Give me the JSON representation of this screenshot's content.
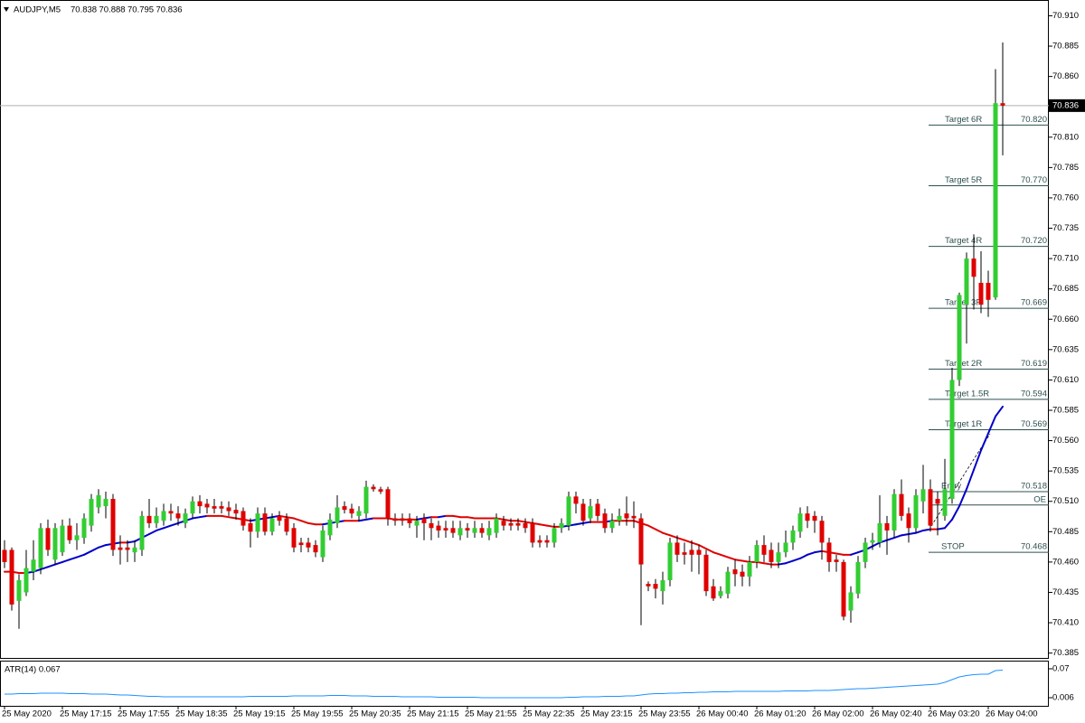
{
  "chart_data": {
    "type": "candlestick",
    "symbol": "AUDJPY,M5",
    "indicator_label": "ATR(14) 0.067",
    "up_color": "#32cd32",
    "down_color": "#e00000",
    "wick_color": "#000000",
    "ma_up_color": "#0000c8",
    "ma_down_color": "#e00000",
    "atr_color": "#1e90ff",
    "current_price_line": true,
    "ylim": [
      70.381,
      70.923
    ],
    "yticks": [
      {
        "value": 70.91,
        "label": "70.910"
      },
      {
        "value": 70.885,
        "label": "70.885"
      },
      {
        "value": 70.86,
        "label": "70.860"
      },
      {
        "value": 70.81,
        "label": "70.810"
      },
      {
        "value": 70.785,
        "label": "70.785"
      },
      {
        "value": 70.76,
        "label": "70.760"
      },
      {
        "value": 70.735,
        "label": "70.735"
      },
      {
        "value": 70.71,
        "label": "70.710"
      },
      {
        "value": 70.685,
        "label": "70.685"
      },
      {
        "value": 70.66,
        "label": "70.660"
      },
      {
        "value": 70.635,
        "label": "70.635"
      },
      {
        "value": 70.61,
        "label": "70.610"
      },
      {
        "value": 70.585,
        "label": "70.585"
      },
      {
        "value": 70.56,
        "label": "70.560"
      },
      {
        "value": 70.535,
        "label": "70.535"
      },
      {
        "value": 70.51,
        "label": "70.510"
      },
      {
        "value": 70.485,
        "label": "70.485"
      },
      {
        "value": 70.46,
        "label": "70.460"
      },
      {
        "value": 70.435,
        "label": "70.435"
      },
      {
        "value": 70.41,
        "label": "70.410"
      },
      {
        "value": 70.385,
        "label": "70.385"
      }
    ],
    "atr_ylim": [
      -0.012,
      0.084
    ],
    "atr_ticks": [
      0.07,
      0.006
    ],
    "levels": [
      {
        "name": "Target 6R",
        "value": 70.82,
        "label": "70.820"
      },
      {
        "name": "Target 5R",
        "value": 70.77,
        "label": "70.770"
      },
      {
        "name": "Target 4R",
        "value": 70.72,
        "label": "70.720"
      },
      {
        "name": "Target 3R",
        "value": 70.669,
        "label": "70.669"
      },
      {
        "name": "Target 2R",
        "value": 70.619,
        "label": "70.619"
      },
      {
        "name": "Target 1.5R",
        "value": 70.594,
        "label": "70.594"
      },
      {
        "name": "Target 1R",
        "value": 70.569,
        "label": "70.569"
      },
      {
        "name": "Entry",
        "value": 70.518,
        "label": "70.518"
      },
      {
        "name": "OE",
        "value": 70.507
      },
      {
        "name": "STOP",
        "value": 70.468,
        "label": "70.468"
      }
    ],
    "categories": [
      "25 May 2020",
      null,
      null,
      null,
      null,
      null,
      null,
      null,
      "25 May 17:15",
      null,
      null,
      null,
      null,
      null,
      null,
      null,
      "25 May 17:55",
      null,
      null,
      null,
      null,
      null,
      null,
      null,
      "25 May 18:35",
      null,
      null,
      null,
      null,
      null,
      null,
      null,
      "25 May 19:15",
      null,
      null,
      null,
      null,
      null,
      null,
      null,
      "25 May 19:55",
      null,
      null,
      null,
      null,
      null,
      null,
      null,
      "25 May 20:35",
      null,
      null,
      null,
      null,
      null,
      null,
      null,
      "25 May 21:15",
      null,
      null,
      null,
      null,
      null,
      null,
      null,
      "25 May 21:55",
      null,
      null,
      null,
      null,
      null,
      null,
      null,
      "25 May 22:35",
      null,
      null,
      null,
      null,
      null,
      null,
      null,
      "25 May 23:15",
      null,
      null,
      null,
      null,
      null,
      null,
      null,
      "25 May 23:55",
      null,
      null,
      null,
      null,
      null,
      null,
      null,
      "26 May 00:40",
      null,
      null,
      null,
      null,
      null,
      null,
      null,
      "26 May 01:20",
      null,
      null,
      null,
      null,
      null,
      null,
      null,
      "26 May 02:00",
      null,
      null,
      null,
      null,
      null,
      null,
      null,
      "26 May 02:40",
      null,
      null,
      null,
      null,
      null,
      null,
      null,
      "26 May 03:20",
      null,
      null,
      null,
      null,
      null,
      null,
      null,
      "26 May 04:00",
      null,
      null
    ],
    "candles": [
      [
        70.47,
        70.478,
        70.455,
        70.46
      ],
      [
        70.47,
        70.472,
        70.42,
        70.425
      ],
      [
        70.428,
        70.45,
        70.405,
        70.445
      ],
      [
        70.435,
        70.47,
        70.432,
        70.455
      ],
      [
        70.452,
        70.478,
        70.445,
        70.462
      ],
      [
        70.455,
        70.492,
        70.45,
        70.488
      ],
      [
        70.488,
        70.495,
        70.465,
        70.47
      ],
      [
        70.462,
        70.492,
        70.458,
        70.488
      ],
      [
        70.468,
        70.495,
        70.465,
        70.49
      ],
      [
        70.49,
        70.496,
        70.475,
        70.478
      ],
      [
        70.478,
        70.492,
        70.47,
        70.482
      ],
      [
        70.48,
        70.5,
        70.475,
        70.496
      ],
      [
        70.49,
        70.516,
        70.485,
        70.512
      ],
      [
        70.505,
        70.52,
        70.5,
        70.515
      ],
      [
        70.506,
        70.518,
        70.496,
        70.512
      ],
      [
        70.512,
        70.516,
        70.465,
        70.47
      ],
      [
        70.472,
        70.482,
        70.458,
        70.47
      ],
      [
        70.472,
        70.478,
        70.46,
        70.47
      ],
      [
        70.468,
        70.478,
        70.46,
        70.472
      ],
      [
        70.47,
        70.502,
        70.465,
        70.498
      ],
      [
        70.498,
        70.512,
        70.488,
        70.492
      ],
      [
        70.492,
        70.505,
        70.488,
        70.498
      ],
      [
        70.494,
        70.508,
        70.49,
        70.502
      ],
      [
        70.502,
        70.508,
        70.494,
        70.5
      ],
      [
        70.5,
        70.506,
        70.49,
        70.496
      ],
      [
        70.492,
        70.504,
        70.488,
        70.5
      ],
      [
        70.5,
        70.514,
        70.496,
        70.51
      ],
      [
        70.51,
        70.515,
        70.5,
        70.506
      ],
      [
        70.508,
        70.512,
        70.5,
        70.505
      ],
      [
        70.506,
        70.512,
        70.5,
        70.504
      ],
      [
        70.506,
        70.51,
        70.5,
        70.504
      ],
      [
        70.505,
        70.51,
        70.498,
        70.502
      ],
      [
        70.503,
        70.508,
        70.495,
        70.5
      ],
      [
        70.502,
        70.505,
        70.486,
        70.49
      ],
      [
        70.492,
        70.496,
        70.472,
        70.485
      ],
      [
        70.485,
        70.505,
        70.48,
        70.5
      ],
      [
        70.5,
        70.505,
        70.482,
        70.485
      ],
      [
        70.485,
        70.5,
        70.482,
        70.496
      ],
      [
        70.498,
        70.502,
        70.49,
        70.494
      ],
      [
        70.496,
        70.5,
        70.482,
        70.485
      ],
      [
        70.488,
        70.492,
        70.468,
        70.472
      ],
      [
        70.476,
        70.48,
        70.468,
        70.474
      ],
      [
        70.476,
        70.48,
        70.468,
        70.472
      ],
      [
        70.474,
        70.478,
        70.464,
        70.468
      ],
      [
        70.464,
        70.49,
        70.46,
        70.486
      ],
      [
        70.482,
        70.5,
        70.478,
        70.495
      ],
      [
        70.492,
        70.515,
        70.488,
        70.505
      ],
      [
        70.506,
        70.51,
        70.5,
        70.503
      ],
      [
        70.504,
        70.508,
        70.496,
        70.5
      ],
      [
        70.498,
        70.506,
        70.494,
        70.502
      ],
      [
        70.5,
        70.527,
        70.496,
        70.522
      ],
      [
        70.522,
        70.524,
        70.518,
        70.52
      ],
      [
        70.52,
        70.522,
        70.516,
        70.518
      ],
      [
        70.52,
        70.522,
        70.49,
        70.496
      ],
      [
        70.496,
        70.5,
        70.49,
        70.494
      ],
      [
        70.496,
        70.5,
        70.49,
        70.494
      ],
      [
        70.496,
        70.5,
        70.488,
        70.492
      ],
      [
        70.49,
        70.498,
        70.48,
        70.494
      ],
      [
        70.496,
        70.5,
        70.478,
        70.492
      ],
      [
        70.492,
        70.496,
        70.478,
        70.488
      ],
      [
        70.49,
        70.494,
        70.48,
        70.486
      ],
      [
        70.488,
        70.494,
        70.48,
        70.486
      ],
      [
        70.488,
        70.494,
        70.48,
        70.484
      ],
      [
        70.482,
        70.494,
        70.478,
        70.488
      ],
      [
        70.488,
        70.492,
        70.48,
        70.486
      ],
      [
        70.484,
        70.494,
        70.48,
        70.488
      ],
      [
        70.488,
        70.492,
        70.48,
        70.484
      ],
      [
        70.482,
        70.494,
        70.478,
        70.488
      ],
      [
        70.484,
        70.5,
        70.48,
        70.496
      ],
      [
        70.494,
        70.498,
        70.486,
        70.49
      ],
      [
        70.492,
        70.496,
        70.486,
        70.49
      ],
      [
        70.492,
        70.496,
        70.486,
        70.49
      ],
      [
        70.492,
        70.496,
        70.484,
        70.488
      ],
      [
        70.492,
        70.496,
        70.472,
        70.476
      ],
      [
        70.478,
        70.482,
        70.472,
        70.476
      ],
      [
        70.478,
        70.482,
        70.472,
        70.476
      ],
      [
        70.476,
        70.492,
        70.472,
        70.488
      ],
      [
        70.488,
        70.496,
        70.484,
        70.492
      ],
      [
        70.49,
        70.518,
        70.486,
        70.514
      ],
      [
        70.514,
        70.518,
        70.5,
        70.508
      ],
      [
        70.508,
        70.512,
        70.49,
        70.494
      ],
      [
        70.496,
        70.512,
        70.492,
        70.506
      ],
      [
        70.508,
        70.512,
        70.494,
        70.498
      ],
      [
        70.5,
        70.504,
        70.484,
        70.488
      ],
      [
        70.488,
        70.5,
        70.484,
        70.494
      ],
      [
        70.494,
        70.504,
        70.49,
        70.498
      ],
      [
        70.5,
        70.514,
        70.49,
        70.496
      ],
      [
        70.498,
        70.51,
        70.488,
        70.496
      ],
      [
        70.496,
        70.5,
        70.408,
        70.458
      ],
      [
        70.442,
        70.444,
        70.436,
        70.44
      ],
      [
        70.442,
        70.446,
        70.43,
        70.438
      ],
      [
        70.436,
        70.452,
        70.425,
        70.445
      ],
      [
        70.445,
        70.48,
        70.44,
        70.476
      ],
      [
        70.476,
        70.482,
        70.46,
        70.466
      ],
      [
        70.468,
        70.476,
        70.458,
        70.466
      ],
      [
        70.47,
        70.478,
        70.452,
        70.466
      ],
      [
        70.47,
        70.474,
        70.45,
        70.466
      ],
      [
        70.466,
        70.47,
        70.432,
        70.436
      ],
      [
        70.44,
        70.446,
        70.428,
        70.43
      ],
      [
        70.432,
        70.44,
        70.43,
        70.436
      ],
      [
        70.434,
        70.456,
        70.43,
        70.452
      ],
      [
        70.454,
        70.462,
        70.44,
        70.45
      ],
      [
        70.452,
        70.458,
        70.44,
        70.448
      ],
      [
        70.448,
        70.465,
        70.44,
        70.46
      ],
      [
        70.46,
        70.478,
        70.455,
        70.474
      ],
      [
        70.474,
        70.482,
        70.46,
        70.466
      ],
      [
        70.47,
        70.476,
        70.455,
        70.46
      ],
      [
        70.46,
        70.476,
        70.455,
        70.468
      ],
      [
        70.468,
        70.486,
        70.464,
        70.476
      ],
      [
        70.476,
        70.49,
        70.47,
        70.486
      ],
      [
        70.485,
        70.505,
        70.48,
        70.5
      ],
      [
        70.5,
        70.506,
        70.488,
        70.494
      ],
      [
        70.498,
        70.502,
        70.484,
        70.494
      ],
      [
        70.494,
        70.498,
        70.462,
        70.476
      ],
      [
        70.476,
        70.48,
        70.452,
        70.46
      ],
      [
        70.462,
        70.466,
        70.452,
        70.46
      ],
      [
        70.46,
        70.462,
        70.412,
        70.415
      ],
      [
        70.42,
        70.44,
        70.41,
        70.435
      ],
      [
        70.434,
        70.465,
        70.43,
        70.46
      ],
      [
        70.46,
        70.48,
        70.455,
        70.476
      ],
      [
        70.476,
        70.484,
        70.47,
        70.478
      ],
      [
        70.476,
        70.515,
        70.472,
        70.492
      ],
      [
        70.492,
        70.498,
        70.466,
        70.486
      ],
      [
        70.486,
        70.52,
        70.48,
        70.516
      ],
      [
        70.516,
        70.528,
        70.494,
        70.498
      ],
      [
        70.5,
        70.505,
        70.476,
        70.488
      ],
      [
        70.488,
        70.52,
        70.484,
        70.515
      ],
      [
        70.51,
        70.54,
        70.5,
        70.52
      ],
      [
        70.52,
        70.528,
        70.485,
        70.49
      ],
      [
        70.512,
        70.518,
        70.482,
        70.508
      ],
      [
        70.498,
        70.545,
        70.494,
        70.52
      ],
      [
        70.512,
        70.62,
        70.508,
        70.61
      ],
      [
        70.61,
        70.682,
        70.605,
        70.68
      ],
      [
        70.672,
        70.715,
        70.64,
        70.71
      ],
      [
        70.71,
        70.73,
        70.668,
        70.695
      ],
      [
        70.69,
        70.716,
        70.665,
        70.672
      ],
      [
        70.69,
        70.7,
        70.662,
        70.676
      ],
      [
        70.678,
        70.866,
        70.676,
        70.838
      ],
      [
        70.838,
        70.888,
        70.795,
        70.836
      ]
    ],
    "ma": [
      70.452,
      70.452,
      70.451,
      70.451,
      70.452,
      70.454,
      70.456,
      70.458,
      70.46,
      70.462,
      70.464,
      70.466,
      70.469,
      70.472,
      70.474,
      70.475,
      70.476,
      70.476,
      70.477,
      70.48,
      70.483,
      70.486,
      70.488,
      70.49,
      70.492,
      70.494,
      70.496,
      70.497,
      70.498,
      70.498,
      70.498,
      70.497,
      70.496,
      70.495,
      70.494,
      70.495,
      70.496,
      70.497,
      70.498,
      70.497,
      70.496,
      70.494,
      70.492,
      70.491,
      70.491,
      70.492,
      70.493,
      70.494,
      70.494,
      70.494,
      70.495,
      70.496,
      70.496,
      70.496,
      70.495,
      70.495,
      70.495,
      70.495,
      70.496,
      70.497,
      70.497,
      70.498,
      70.498,
      70.497,
      70.497,
      70.496,
      70.496,
      70.496,
      70.496,
      70.495,
      70.494,
      70.494,
      70.493,
      70.492,
      70.491,
      70.49,
      70.489,
      70.489,
      70.49,
      70.491,
      70.492,
      70.493,
      70.493,
      70.493,
      70.494,
      70.494,
      70.494,
      70.494,
      70.492,
      70.49,
      70.487,
      70.484,
      70.482,
      70.48,
      70.478,
      70.476,
      70.474,
      70.471,
      70.468,
      70.466,
      70.464,
      70.462,
      70.461,
      70.46,
      70.46,
      70.459,
      70.458,
      70.458,
      70.459,
      70.461,
      70.463,
      70.466,
      70.468,
      70.469,
      70.468,
      70.467,
      70.466,
      70.466,
      70.468,
      70.47,
      70.473,
      70.476,
      70.478,
      70.48,
      70.482,
      70.483,
      70.484,
      70.486,
      70.487,
      70.487,
      70.488,
      70.495,
      70.506,
      70.52,
      70.536,
      70.552,
      70.566,
      70.58,
      70.588
    ],
    "atr": [
      0.014,
      0.014,
      0.015,
      0.015,
      0.015,
      0.016,
      0.016,
      0.016,
      0.016,
      0.015,
      0.015,
      0.015,
      0.014,
      0.014,
      0.014,
      0.013,
      0.012,
      0.012,
      0.011,
      0.01,
      0.009,
      0.009,
      0.008,
      0.008,
      0.008,
      0.008,
      0.008,
      0.008,
      0.008,
      0.008,
      0.008,
      0.008,
      0.008,
      0.008,
      0.009,
      0.009,
      0.009,
      0.009,
      0.009,
      0.009,
      0.01,
      0.01,
      0.01,
      0.01,
      0.01,
      0.011,
      0.011,
      0.011,
      0.01,
      0.01,
      0.01,
      0.009,
      0.009,
      0.009,
      0.009,
      0.008,
      0.008,
      0.008,
      0.008,
      0.008,
      0.007,
      0.007,
      0.007,
      0.007,
      0.007,
      0.007,
      0.006,
      0.006,
      0.006,
      0.006,
      0.006,
      0.006,
      0.006,
      0.006,
      0.006,
      0.006,
      0.006,
      0.006,
      0.007,
      0.007,
      0.008,
      0.008,
      0.008,
      0.009,
      0.009,
      0.009,
      0.01,
      0.01,
      0.012,
      0.014,
      0.015,
      0.015,
      0.016,
      0.016,
      0.017,
      0.017,
      0.018,
      0.018,
      0.019,
      0.019,
      0.019,
      0.02,
      0.02,
      0.02,
      0.02,
      0.02,
      0.02,
      0.02,
      0.021,
      0.021,
      0.021,
      0.021,
      0.022,
      0.022,
      0.022,
      0.023,
      0.024,
      0.025,
      0.026,
      0.026,
      0.027,
      0.028,
      0.029,
      0.03,
      0.031,
      0.032,
      0.033,
      0.034,
      0.035,
      0.036,
      0.04,
      0.046,
      0.052,
      0.055,
      0.057,
      0.058,
      0.058,
      0.066,
      0.067
    ]
  }
}
